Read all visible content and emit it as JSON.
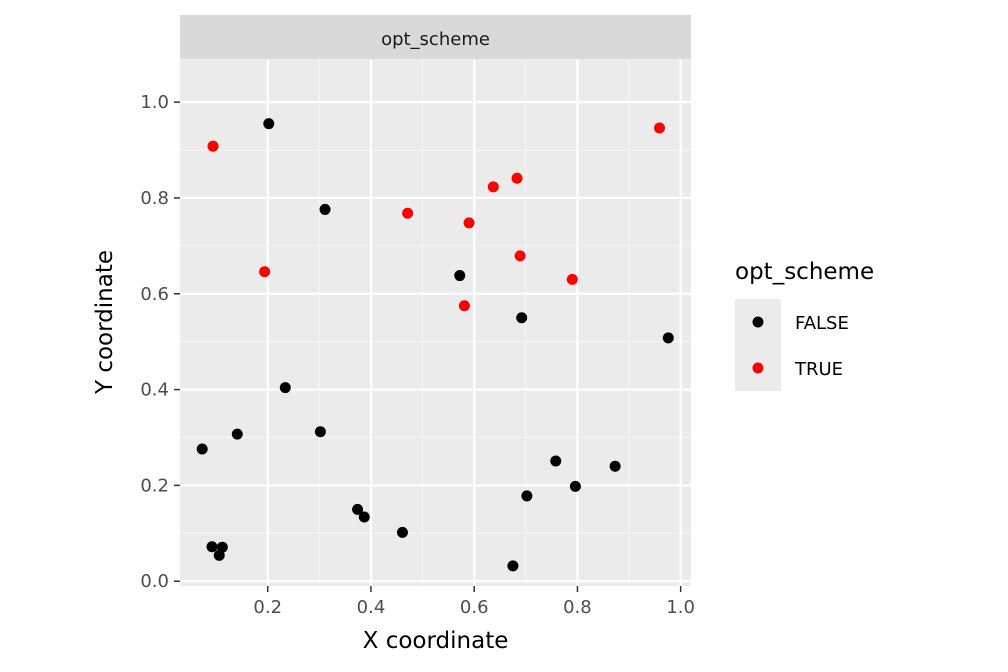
{
  "chart_data": {
    "type": "scatter",
    "facet_label": "opt_scheme",
    "xlabel": "X coordinate",
    "ylabel": "Y coordinate",
    "xlim": [
      0.03,
      1.02
    ],
    "ylim": [
      -0.01,
      1.09
    ],
    "x_ticks": [
      0.2,
      0.4,
      0.6,
      0.8,
      1.0
    ],
    "x_tick_labels": [
      "0.2",
      "0.4",
      "0.6",
      "0.8",
      "1.0"
    ],
    "y_ticks": [
      0.0,
      0.2,
      0.4,
      0.6,
      0.8,
      1.0
    ],
    "y_tick_labels": [
      "0.0",
      "0.2",
      "0.4",
      "0.6",
      "0.8",
      "1.0"
    ],
    "grid": true,
    "legend": {
      "title": "opt_scheme",
      "placement": "right",
      "entries": [
        {
          "label": "FALSE",
          "color": "#000000"
        },
        {
          "label": "TRUE",
          "color": "#ff0000"
        }
      ]
    },
    "series": [
      {
        "name": "FALSE",
        "color": "#000000",
        "points": [
          {
            "x": 0.202,
            "y": 0.955
          },
          {
            "x": 0.311,
            "y": 0.776
          },
          {
            "x": 0.572,
            "y": 0.638
          },
          {
            "x": 0.692,
            "y": 0.55
          },
          {
            "x": 0.976,
            "y": 0.508
          },
          {
            "x": 0.234,
            "y": 0.404
          },
          {
            "x": 0.141,
            "y": 0.307
          },
          {
            "x": 0.302,
            "y": 0.312
          },
          {
            "x": 0.073,
            "y": 0.276
          },
          {
            "x": 0.758,
            "y": 0.251
          },
          {
            "x": 0.873,
            "y": 0.24
          },
          {
            "x": 0.796,
            "y": 0.198
          },
          {
            "x": 0.702,
            "y": 0.178
          },
          {
            "x": 0.374,
            "y": 0.15
          },
          {
            "x": 0.387,
            "y": 0.134
          },
          {
            "x": 0.461,
            "y": 0.102
          },
          {
            "x": 0.092,
            "y": 0.072
          },
          {
            "x": 0.112,
            "y": 0.071
          },
          {
            "x": 0.106,
            "y": 0.054
          },
          {
            "x": 0.675,
            "y": 0.032
          }
        ]
      },
      {
        "name": "TRUE",
        "color": "#ff0000",
        "points": [
          {
            "x": 0.094,
            "y": 0.908
          },
          {
            "x": 0.959,
            "y": 0.946
          },
          {
            "x": 0.683,
            "y": 0.841
          },
          {
            "x": 0.637,
            "y": 0.823
          },
          {
            "x": 0.471,
            "y": 0.768
          },
          {
            "x": 0.59,
            "y": 0.748
          },
          {
            "x": 0.689,
            "y": 0.679
          },
          {
            "x": 0.194,
            "y": 0.646
          },
          {
            "x": 0.79,
            "y": 0.63
          },
          {
            "x": 0.581,
            "y": 0.575
          }
        ]
      }
    ]
  }
}
